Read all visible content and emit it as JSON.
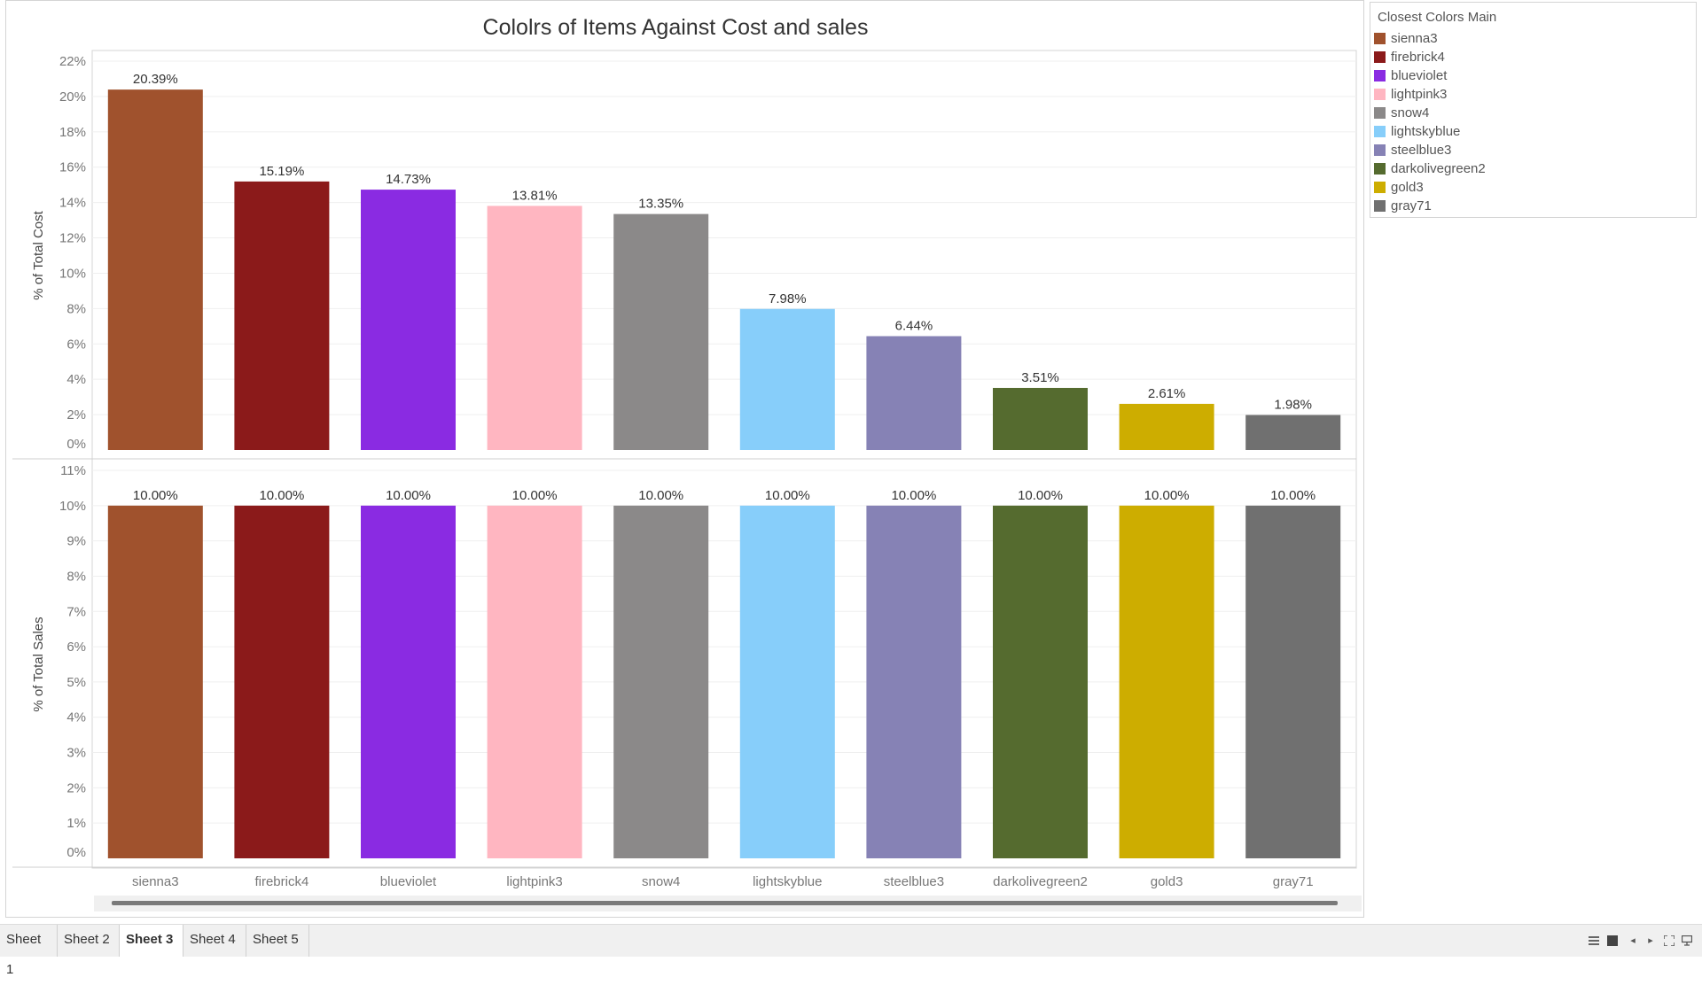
{
  "chart_data": [
    {
      "type": "bar",
      "title": "Cololrs of Items Against Cost and sales",
      "xlabel": "",
      "ylabel": "% of Total Cost",
      "categories": [
        "sienna3",
        "firebrick4",
        "blueviolet",
        "lightpink3",
        "snow4",
        "lightskyblue",
        "steelblue3",
        "darkolivegreen2",
        "gold3",
        "gray71"
      ],
      "values": [
        20.39,
        15.19,
        14.73,
        13.81,
        13.35,
        7.98,
        6.44,
        3.51,
        2.61,
        1.98
      ],
      "data_labels": [
        "20.39%",
        "15.19%",
        "14.73%",
        "13.81%",
        "13.35%",
        "7.98%",
        "6.44%",
        "3.51%",
        "2.61%",
        "1.98%"
      ],
      "ylim": [
        0,
        22
      ],
      "yticks": [
        "0%",
        "2%",
        "4%",
        "6%",
        "8%",
        "10%",
        "12%",
        "14%",
        "16%",
        "18%",
        "20%",
        "22%"
      ],
      "grid": true
    },
    {
      "type": "bar",
      "title": "",
      "xlabel": "",
      "ylabel": "% of Total Sales",
      "categories": [
        "sienna3",
        "firebrick4",
        "blueviolet",
        "lightpink3",
        "snow4",
        "lightskyblue",
        "steelblue3",
        "darkolivegreen2",
        "gold3",
        "gray71"
      ],
      "values": [
        10,
        10,
        10,
        10,
        10,
        10,
        10,
        10,
        10,
        10
      ],
      "data_labels": [
        "10.00%",
        "10.00%",
        "10.00%",
        "10.00%",
        "10.00%",
        "10.00%",
        "10.00%",
        "10.00%",
        "10.00%",
        "10.00%"
      ],
      "ylim": [
        0,
        11
      ],
      "yticks": [
        "0%",
        "1%",
        "2%",
        "3%",
        "4%",
        "5%",
        "6%",
        "7%",
        "8%",
        "9%",
        "10%",
        "11%"
      ],
      "grid": true
    }
  ],
  "bar_colors": [
    "#a0522d",
    "#8b1a1a",
    "#8a2be2",
    "#ffb6c1",
    "#8b8989",
    "#87cefa",
    "#8682b5",
    "#556b2f",
    "#cdad00",
    "#707070"
  ],
  "legend": {
    "title": "Closest Colors Main",
    "placement": "right",
    "items": [
      {
        "label": "sienna3",
        "color": "#a0522d"
      },
      {
        "label": "firebrick4",
        "color": "#8b1a1a"
      },
      {
        "label": "blueviolet",
        "color": "#8a2be2"
      },
      {
        "label": "lightpink3",
        "color": "#ffb6c1"
      },
      {
        "label": "snow4",
        "color": "#8b8989"
      },
      {
        "label": "lightskyblue",
        "color": "#87cefa"
      },
      {
        "label": "steelblue3",
        "color": "#8682b5"
      },
      {
        "label": "darkolivegreen2",
        "color": "#556b2f"
      },
      {
        "label": "gold3",
        "color": "#cdad00"
      },
      {
        "label": "gray71",
        "color": "#707070"
      }
    ]
  },
  "tabs": [
    {
      "label": "Sheet 1",
      "active": false
    },
    {
      "label": "Sheet 2",
      "active": false
    },
    {
      "label": "Sheet 3",
      "active": true
    },
    {
      "label": "Sheet 4",
      "active": false
    },
    {
      "label": "Sheet 5",
      "active": false
    }
  ],
  "nav_icons": [
    "grid-view-icon",
    "single-view-icon",
    "prev-sheet-icon",
    "next-sheet-icon",
    "fullscreen-icon",
    "presentation-icon"
  ]
}
